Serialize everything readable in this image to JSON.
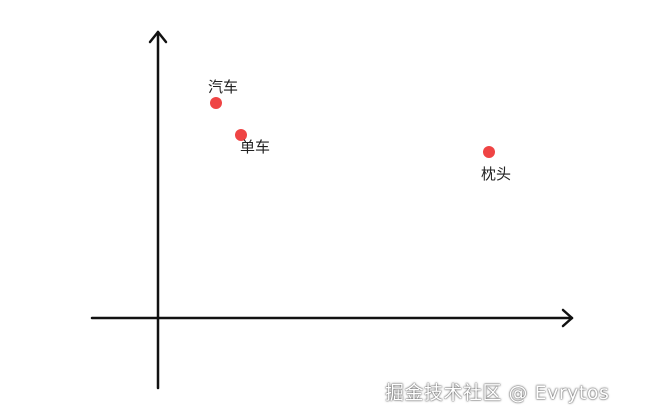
{
  "points": [
    {
      "label": "汽车"
    },
    {
      "label": "单车"
    },
    {
      "label": "枕头"
    }
  ],
  "point_color": "#ef4444",
  "axis_color": "#111111",
  "watermark": "掘金技术社区 @ Evrytos"
}
